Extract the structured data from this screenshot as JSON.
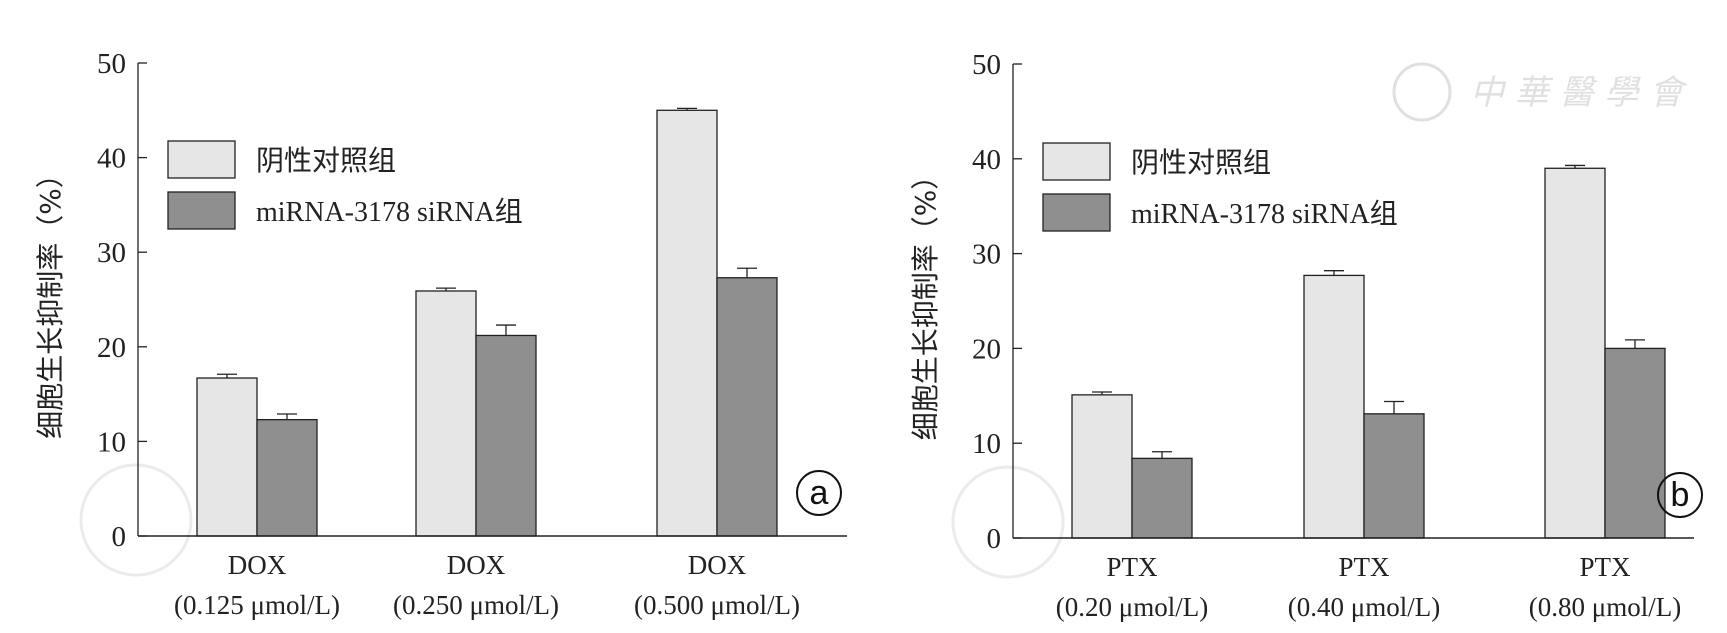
{
  "chart_data": [
    {
      "type": "bar",
      "panel_label": "a",
      "title": "",
      "xlabel": "",
      "ylabel": "细胞生长抑制率（%）",
      "ylim": [
        0,
        50
      ],
      "yticks": [
        0,
        10,
        20,
        30,
        40,
        50
      ],
      "grid": false,
      "legend_position": "top-left",
      "categories": [
        [
          "DOX",
          "(0.125 μmol/L)"
        ],
        [
          "DOX",
          "(0.250 μmol/L)"
        ],
        [
          "DOX",
          "(0.500 μmol/L)"
        ]
      ],
      "series": [
        {
          "name": "阴性对照组",
          "color": "#e6e6e6",
          "values": [
            16.7,
            25.9,
            45.0
          ],
          "error_upper": [
            17.1,
            26.2,
            45.2
          ]
        },
        {
          "name": "miRNA-3178 siRNA组",
          "color": "#8f8f8f",
          "values": [
            12.3,
            21.2,
            27.3
          ],
          "error_upper": [
            12.9,
            22.3,
            28.3
          ]
        }
      ]
    },
    {
      "type": "bar",
      "panel_label": "b",
      "title": "",
      "xlabel": "",
      "ylabel": "细胞生长抑制率（%）",
      "ylim": [
        0,
        50
      ],
      "yticks": [
        0,
        10,
        20,
        30,
        40,
        50
      ],
      "grid": false,
      "legend_position": "top-left",
      "categories": [
        [
          "PTX",
          "(0.20 μmol/L)"
        ],
        [
          "PTX",
          "(0.40 μmol/L)"
        ],
        [
          "PTX",
          "(0.80 μmol/L)"
        ]
      ],
      "series": [
        {
          "name": "阴性对照组",
          "color": "#e6e6e6",
          "values": [
            15.1,
            27.7,
            39.0
          ],
          "error_upper": [
            15.4,
            28.2,
            39.3
          ]
        },
        {
          "name": "miRNA-3178 siRNA组",
          "color": "#8f8f8f",
          "values": [
            8.4,
            13.1,
            20.0
          ],
          "error_upper": [
            9.1,
            14.4,
            20.9
          ]
        }
      ]
    }
  ],
  "watermark": {
    "text": "中华医学会"
  }
}
